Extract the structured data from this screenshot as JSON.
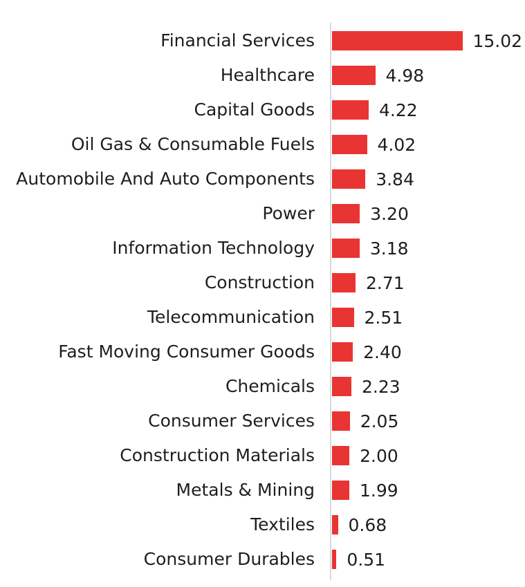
{
  "chart_data": {
    "type": "bar",
    "orientation": "horizontal",
    "title": "",
    "xlabel": "",
    "ylabel": "",
    "grid": false,
    "legend": false,
    "bar_color": "#e93434",
    "axis_line_color": "#d9d9d9",
    "text_color": "#1e1e1e",
    "categories": [
      "Financial Services",
      "Healthcare",
      "Capital Goods",
      "Oil Gas & Consumable Fuels",
      "Automobile And Auto Components",
      "Power",
      "Information Technology",
      "Construction",
      "Telecommunication",
      "Fast Moving Consumer Goods",
      "Chemicals",
      "Consumer Services",
      "Construction Materials",
      "Metals & Mining",
      "Textiles",
      "Consumer Durables"
    ],
    "values": [
      15.02,
      4.98,
      4.22,
      4.02,
      3.84,
      3.2,
      3.18,
      2.71,
      2.51,
      2.4,
      2.23,
      2.05,
      2.0,
      1.99,
      0.68,
      0.51
    ],
    "value_labels": [
      "15.02",
      "4.98",
      "4.22",
      "4.02",
      "3.84",
      "3.20",
      "3.18",
      "2.71",
      "2.51",
      "2.40",
      "2.23",
      "2.05",
      "2.00",
      "1.99",
      "0.68",
      "0.51"
    ]
  }
}
